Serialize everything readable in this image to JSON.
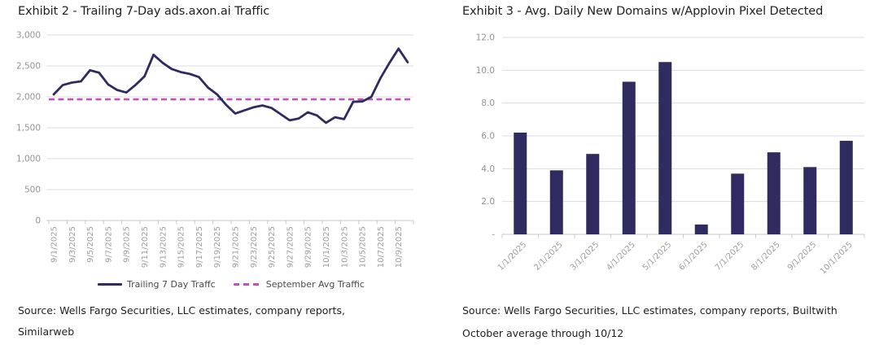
{
  "page_background": "#ffffff",
  "colors": {
    "series_navy": "#2f2a5f",
    "avg_magenta": "#c351bb",
    "gridline": "#dcdcdc",
    "axis_line": "#c9c9c9",
    "axis_label": "#949494",
    "title_text": "#212121",
    "legend_text": "#4a4a4a"
  },
  "left_panel": {
    "source_lines": [
      "Source: Wells Fargo Securities, LLC estimates, company reports,",
      "Similarweb"
    ]
  },
  "right_panel": {
    "source_lines": [
      "Source: Wells Fargo Securities, LLC estimates, company reports, Builtwith",
      "October average through 10/12"
    ]
  },
  "chart_data": [
    {
      "type": "line",
      "title": "Exhibit 2 - Trailing 7-Day ads.axon.ai Traffic",
      "x": [
        "9/1/2025",
        "9/2/2025",
        "9/3/2025",
        "9/4/2025",
        "9/5/2025",
        "9/6/2025",
        "9/7/2025",
        "9/8/2025",
        "9/9/2025",
        "9/10/2025",
        "9/11/2025",
        "9/12/2025",
        "9/13/2025",
        "9/14/2025",
        "9/15/2025",
        "9/16/2025",
        "9/17/2025",
        "9/18/2025",
        "9/19/2025",
        "9/20/2025",
        "9/21/2025",
        "9/22/2025",
        "9/23/2025",
        "9/24/2025",
        "9/25/2025",
        "9/26/2025",
        "9/27/2025",
        "9/28/2025",
        "9/29/2025",
        "9/30/2025",
        "10/1/2025",
        "10/2/2025",
        "10/3/2025",
        "10/4/2025",
        "10/5/2025",
        "10/6/2025",
        "10/7/2025",
        "10/8/2025",
        "10/9/2025",
        "10/10/2025"
      ],
      "x_axis_tick_labels": [
        "9/1/2025",
        "9/3/2025",
        "9/5/2025",
        "9/7/2025",
        "9/9/2025",
        "9/11/2025",
        "9/13/2025",
        "9/15/2025",
        "9/17/2025",
        "9/19/2025",
        "9/21/2025",
        "9/23/2025",
        "9/25/2025",
        "9/27/2025",
        "9/29/2025",
        "10/1/2025",
        "10/3/2025",
        "10/5/2025",
        "10/7/2025",
        "10/9/2025"
      ],
      "ylim": [
        0,
        3000
      ],
      "y_tick_labels": [
        "3,000",
        "2,500",
        "2,000",
        "1,500",
        "1,000",
        "500",
        "0"
      ],
      "grid": true,
      "legend_position": "bottom",
      "series": [
        {
          "name": "Trailing 7 Day Traffc",
          "type": "line",
          "color": "#2f2a5f",
          "values": [
            2040,
            2190,
            2230,
            2250,
            2430,
            2390,
            2200,
            2110,
            2070,
            2190,
            2330,
            2680,
            2550,
            2450,
            2400,
            2370,
            2320,
            2150,
            2040,
            1870,
            1730,
            1780,
            1830,
            1860,
            1820,
            1720,
            1620,
            1650,
            1750,
            1700,
            1580,
            1670,
            1640,
            1920,
            1925,
            2000,
            2300,
            2550,
            2780,
            2560
          ]
        },
        {
          "name": "September Avg Traffic",
          "type": "constant-line",
          "style": "dashed",
          "color": "#c351bb",
          "value": 1960
        }
      ]
    },
    {
      "type": "bar",
      "title": "Exhibit 3 - Avg. Daily New Domains w/Applovin Pixel Detected",
      "categories": [
        "1/1/2025",
        "2/1/2025",
        "3/1/2025",
        "4/1/2025",
        "5/1/2025",
        "6/1/2025",
        "7/1/2025",
        "8/1/2025",
        "9/1/2025",
        "10/1/2025"
      ],
      "values": [
        6.2,
        3.9,
        4.9,
        9.3,
        10.5,
        0.6,
        3.7,
        5.0,
        4.1,
        5.7
      ],
      "bar_color": "#2f2a5f",
      "ylim": [
        0,
        12
      ],
      "y_tick_labels": [
        "12.0",
        "10.0",
        "8.0",
        "6.0",
        "4.0",
        "2.0",
        "-"
      ],
      "grid": true,
      "legend_position": "none"
    }
  ]
}
